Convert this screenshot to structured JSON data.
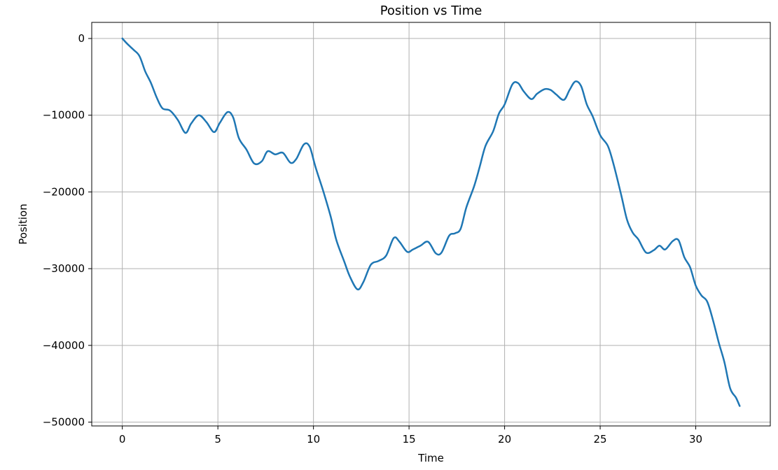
{
  "chart_data": {
    "type": "line",
    "title": "Position vs Time",
    "xlabel": "Time",
    "ylabel": "Position",
    "xlim": [
      -1.6,
      33.9
    ],
    "ylim": [
      -50500,
      2100
    ],
    "grid": true,
    "line_color": "#1f77b4",
    "x_ticks": [
      0,
      5,
      10,
      15,
      20,
      25,
      30
    ],
    "x_tick_labels": [
      "0",
      "5",
      "10",
      "15",
      "20",
      "25",
      "30"
    ],
    "y_ticks": [
      0,
      -10000,
      -20000,
      -30000,
      -40000,
      -50000
    ],
    "y_tick_labels": [
      "0",
      "−10000",
      "−20000",
      "−30000",
      "−40000",
      "−50000"
    ],
    "series": [
      {
        "x": [
          0,
          0.3,
          0.6,
          0.9,
          1.2,
          1.5,
          1.8,
          2.1,
          2.5,
          2.9,
          3.3,
          3.6,
          4.0,
          4.4,
          4.8,
          5.1,
          5.5,
          5.8,
          6.1,
          6.5,
          6.9,
          7.3,
          7.6,
          8.0,
          8.4,
          8.8,
          9.1,
          9.5,
          9.8,
          10.1,
          10.5,
          10.9,
          11.2,
          11.6,
          11.9,
          12.3,
          12.6,
          13.0,
          13.4,
          13.8,
          14.2,
          14.5,
          14.9,
          15.2,
          15.6,
          16.0,
          16.4,
          16.7,
          17.1,
          17.4,
          17.7,
          18.0,
          18.4,
          18.7,
          19.0,
          19.4,
          19.7,
          20.0,
          20.4,
          20.7,
          21.0,
          21.4,
          21.7,
          22.1,
          22.4,
          22.7,
          23.1,
          23.4,
          23.7,
          24.0,
          24.3,
          24.6,
          25.0,
          25.4,
          25.7,
          26.1,
          26.4,
          26.7,
          27.0,
          27.4,
          27.8,
          28.1,
          28.4,
          28.8,
          29.1,
          29.4,
          29.7,
          30.0,
          30.3,
          30.6,
          30.9,
          31.2,
          31.5,
          31.8,
          32.1,
          32.3
        ],
        "y": [
          0,
          -800,
          -1500,
          -2300,
          -4300,
          -5800,
          -7700,
          -9100,
          -9400,
          -10600,
          -12300,
          -11100,
          -10000,
          -10900,
          -12200,
          -11000,
          -9600,
          -10300,
          -13000,
          -14500,
          -16300,
          -16000,
          -14700,
          -15100,
          -14900,
          -16200,
          -15700,
          -13800,
          -14100,
          -16700,
          -19800,
          -23200,
          -26300,
          -29000,
          -31000,
          -32700,
          -31800,
          -29500,
          -29000,
          -28300,
          -26000,
          -26500,
          -27800,
          -27500,
          -27000,
          -26500,
          -28000,
          -27900,
          -25700,
          -25400,
          -24800,
          -22000,
          -19300,
          -16700,
          -14000,
          -12100,
          -9800,
          -8600,
          -6000,
          -5800,
          -6900,
          -7900,
          -7200,
          -6600,
          -6700,
          -7300,
          -8000,
          -6700,
          -5600,
          -6200,
          -8600,
          -10100,
          -12600,
          -14000,
          -16400,
          -20400,
          -23600,
          -25300,
          -26200,
          -27900,
          -27600,
          -27000,
          -27500,
          -26400,
          -26300,
          -28500,
          -29800,
          -32200,
          -33500,
          -34300,
          -36700,
          -39600,
          -42200,
          -45600,
          -46800,
          -47900
        ]
      }
    ]
  }
}
